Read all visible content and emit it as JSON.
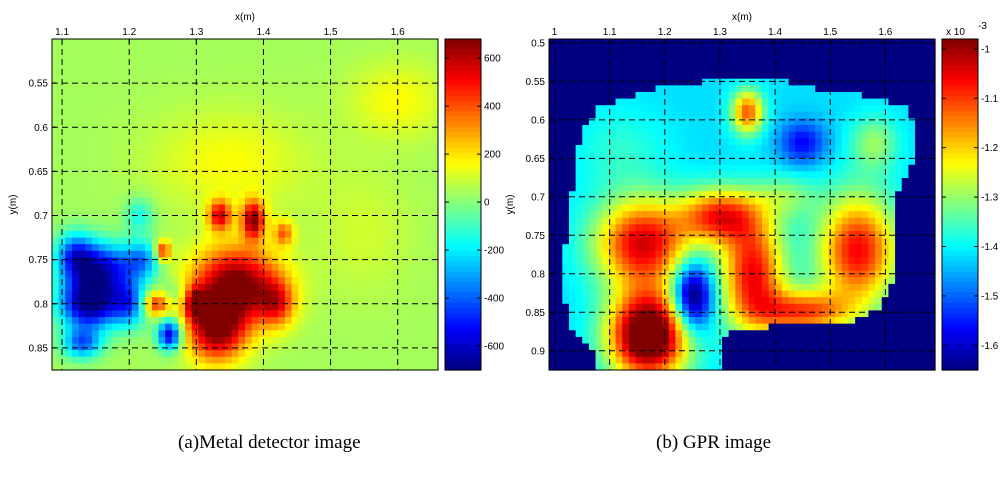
{
  "captions": {
    "left": "(a)Metal detector image",
    "right": "(b) GPR image"
  },
  "chart_data": [
    {
      "type": "heatmap",
      "title": "",
      "xlabel": "x(m)",
      "ylabel": "y(m)",
      "xlim": [
        1.085,
        1.66
      ],
      "ylim": [
        0.5,
        0.875
      ],
      "y_reversed": true,
      "xticks": [
        1.1,
        1.2,
        1.3,
        1.4,
        1.5,
        1.6
      ],
      "yticks": [
        0.55,
        0.6,
        0.65,
        0.7,
        0.75,
        0.8,
        0.85
      ],
      "grid": true,
      "colormap": "jet",
      "colorbar": {
        "range": [
          -700,
          680
        ],
        "ticks": [
          -600,
          -400,
          -200,
          0,
          200,
          400,
          600
        ],
        "exponent": ""
      },
      "background": 40,
      "region": "full",
      "blobs": [
        {
          "x": 1.14,
          "y": 0.8,
          "sx": 0.03,
          "sy": 0.02,
          "v": -750
        },
        {
          "x": 1.16,
          "y": 0.76,
          "sx": 0.035,
          "sy": 0.02,
          "v": -580
        },
        {
          "x": 1.12,
          "y": 0.745,
          "sx": 0.02,
          "sy": 0.018,
          "v": -420
        },
        {
          "x": 1.2,
          "y": 0.8,
          "sx": 0.02,
          "sy": 0.018,
          "v": -420
        },
        {
          "x": 1.22,
          "y": 0.75,
          "sx": 0.018,
          "sy": 0.015,
          "v": -320
        },
        {
          "x": 1.13,
          "y": 0.845,
          "sx": 0.02,
          "sy": 0.012,
          "v": -420
        },
        {
          "x": 1.26,
          "y": 0.835,
          "sx": 0.012,
          "sy": 0.012,
          "v": -650
        },
        {
          "x": 1.215,
          "y": 0.7,
          "sx": 0.015,
          "sy": 0.014,
          "v": -200
        },
        {
          "x": 1.265,
          "y": 0.79,
          "sx": 0.015,
          "sy": 0.012,
          "v": -150
        },
        {
          "x": 1.36,
          "y": 0.78,
          "sx": 0.045,
          "sy": 0.03,
          "v": 700
        },
        {
          "x": 1.33,
          "y": 0.83,
          "sx": 0.03,
          "sy": 0.025,
          "v": 600
        },
        {
          "x": 1.385,
          "y": 0.705,
          "sx": 0.012,
          "sy": 0.015,
          "v": 620
        },
        {
          "x": 1.335,
          "y": 0.7,
          "sx": 0.012,
          "sy": 0.012,
          "v": 500
        },
        {
          "x": 1.3,
          "y": 0.8,
          "sx": 0.012,
          "sy": 0.012,
          "v": 480
        },
        {
          "x": 1.24,
          "y": 0.8,
          "sx": 0.015,
          "sy": 0.01,
          "v": 450
        },
        {
          "x": 1.25,
          "y": 0.74,
          "sx": 0.008,
          "sy": 0.008,
          "v": 450
        },
        {
          "x": 1.43,
          "y": 0.72,
          "sx": 0.01,
          "sy": 0.01,
          "v": 320
        },
        {
          "x": 1.42,
          "y": 0.8,
          "sx": 0.018,
          "sy": 0.018,
          "v": 350
        },
        {
          "x": 1.35,
          "y": 0.64,
          "sx": 0.08,
          "sy": 0.04,
          "v": 120
        },
        {
          "x": 1.6,
          "y": 0.57,
          "sx": 0.05,
          "sy": 0.03,
          "v": 120
        },
        {
          "x": 1.55,
          "y": 0.72,
          "sx": 0.05,
          "sy": 0.05,
          "v": 60
        }
      ]
    },
    {
      "type": "heatmap",
      "title": "",
      "xlabel": "x(m)",
      "ylabel": "y(m)",
      "xlim": [
        0.99,
        1.69
      ],
      "ylim": [
        0.495,
        0.925
      ],
      "y_reversed": true,
      "xticks": [
        1,
        1.1,
        1.2,
        1.3,
        1.4,
        1.5,
        1.6
      ],
      "yticks": [
        0.5,
        0.55,
        0.6,
        0.65,
        0.7,
        0.75,
        0.8,
        0.85,
        0.9
      ],
      "grid": true,
      "colormap": "jet",
      "colorbar": {
        "range": [
          -1.65,
          -0.98
        ],
        "ticks": [
          -1.6,
          -1.5,
          -1.4,
          -1.3,
          -1.2,
          -1.1,
          -1
        ],
        "exponent": "x 10 -3"
      },
      "background": -1.42,
      "outside_value": -1.65,
      "region": "masked",
      "mask_polygon": [
        [
          1.05,
          0.89
        ],
        [
          1.03,
          0.87
        ],
        [
          1.02,
          0.84
        ],
        [
          1.02,
          0.76
        ],
        [
          1.03,
          0.7
        ],
        [
          1.04,
          0.65
        ],
        [
          1.05,
          0.61
        ],
        [
          1.08,
          0.585
        ],
        [
          1.12,
          0.575
        ],
        [
          1.16,
          0.565
        ],
        [
          1.2,
          0.555
        ],
        [
          1.25,
          0.555
        ],
        [
          1.3,
          0.545
        ],
        [
          1.36,
          0.545
        ],
        [
          1.42,
          0.55
        ],
        [
          1.48,
          0.56
        ],
        [
          1.54,
          0.565
        ],
        [
          1.6,
          0.575
        ],
        [
          1.64,
          0.585
        ],
        [
          1.655,
          0.61
        ],
        [
          1.655,
          0.65
        ],
        [
          1.64,
          0.67
        ],
        [
          1.62,
          0.7
        ],
        [
          1.62,
          0.76
        ],
        [
          1.61,
          0.82
        ],
        [
          1.59,
          0.845
        ],
        [
          1.55,
          0.86
        ],
        [
          1.45,
          0.865
        ],
        [
          1.38,
          0.87
        ],
        [
          1.33,
          0.875
        ],
        [
          1.3,
          0.88
        ],
        [
          1.3,
          0.922
        ],
        [
          1.08,
          0.922
        ],
        [
          1.07,
          0.9
        ]
      ],
      "blobs": [
        {
          "x": 1.17,
          "y": 0.88,
          "sx": 0.05,
          "sy": 0.04,
          "v": 0.55
        },
        {
          "x": 1.16,
          "y": 0.76,
          "sx": 0.06,
          "sy": 0.04,
          "v": 0.38
        },
        {
          "x": 1.3,
          "y": 0.725,
          "sx": 0.05,
          "sy": 0.025,
          "v": 0.32
        },
        {
          "x": 1.36,
          "y": 0.8,
          "sx": 0.04,
          "sy": 0.05,
          "v": 0.36
        },
        {
          "x": 1.55,
          "y": 0.77,
          "sx": 0.05,
          "sy": 0.05,
          "v": 0.36
        },
        {
          "x": 1.45,
          "y": 0.85,
          "sx": 0.06,
          "sy": 0.02,
          "v": 0.3
        },
        {
          "x": 1.35,
          "y": 0.59,
          "sx": 0.02,
          "sy": 0.02,
          "v": 0.3
        },
        {
          "x": 1.25,
          "y": 0.83,
          "sx": 0.025,
          "sy": 0.03,
          "v": -0.32
        },
        {
          "x": 1.45,
          "y": 0.63,
          "sx": 0.03,
          "sy": 0.02,
          "v": -0.15
        },
        {
          "x": 1.12,
          "y": 0.64,
          "sx": 0.06,
          "sy": 0.04,
          "v": 0.05
        },
        {
          "x": 1.58,
          "y": 0.63,
          "sx": 0.03,
          "sy": 0.025,
          "v": 0.12
        },
        {
          "x": 1.42,
          "y": 0.7,
          "sx": 0.04,
          "sy": 0.02,
          "v": 0.1
        }
      ]
    }
  ]
}
